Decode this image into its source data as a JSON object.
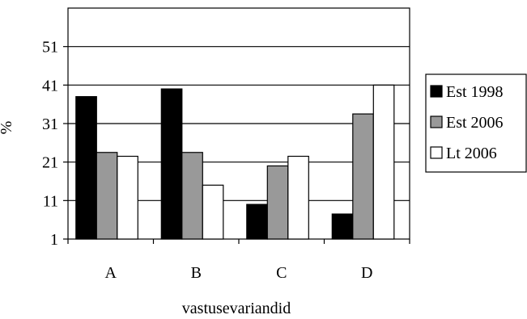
{
  "chart_data": {
    "type": "bar",
    "title": "",
    "xlabel": "vastusevariandid",
    "ylabel": "%",
    "categories": [
      "A",
      "B",
      "C",
      "D"
    ],
    "yticks": [
      1,
      11,
      21,
      31,
      41,
      51
    ],
    "ylim": [
      1,
      61
    ],
    "grid": "horizontal",
    "legend_position": "right",
    "series": [
      {
        "name": "Est 1998",
        "color": "#000000",
        "values": [
          38,
          40,
          10,
          7.5
        ]
      },
      {
        "name": "Est 2006",
        "color": "#999999",
        "values": [
          23.5,
          23.5,
          20,
          33.5
        ]
      },
      {
        "name": "Lt 2006",
        "color": "#ffffff",
        "values": [
          22.5,
          15,
          22.5,
          41
        ]
      }
    ]
  }
}
